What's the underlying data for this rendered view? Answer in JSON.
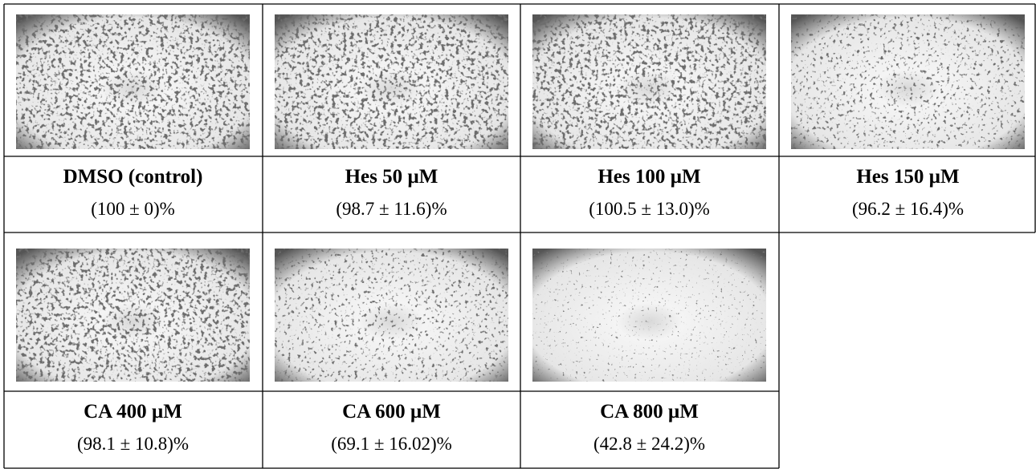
{
  "cells": [
    {
      "title": "DMSO (control)",
      "value": "(100 ± 0)%"
    },
    {
      "title": "Hes 50 µM",
      "value": "(98.7 ± 11.6)%"
    },
    {
      "title": "Hes 100 µM",
      "value": "(100.5 ± 13.0)%"
    },
    {
      "title": "Hes 150 µM",
      "value": "(96.2 ± 16.4)%"
    },
    {
      "title": "CA 400 µM",
      "value": "(98.1 ± 10.8)%"
    },
    {
      "title": "CA 600 µM",
      "value": "(69.1 ± 16.02)%"
    },
    {
      "title": "CA 800 µM",
      "value": "(42.8 ± 24.2)%"
    }
  ]
}
